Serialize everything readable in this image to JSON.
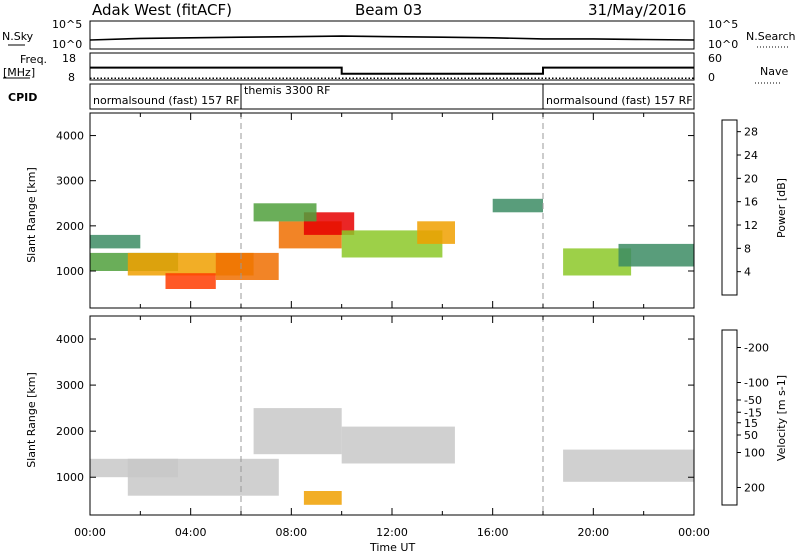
{
  "header": {
    "station": "Adak West (fitACF)",
    "beam": "Beam 03",
    "date": "31/May/2016"
  },
  "side_labels": {
    "nsky": "N.Sky",
    "nsearch": "N.Search",
    "freq_line1": "Freq.",
    "freq_line2": "[MHz]",
    "nave": "Nave",
    "cpid": "CPID"
  },
  "noise_axis": {
    "left_top": "10^5",
    "left_bottom": "10^0",
    "right_top": "10^5",
    "right_bottom": "10^0"
  },
  "freq_axis": {
    "left_top": "18",
    "left_bottom": "8",
    "right_top": "60",
    "right_bottom": "0"
  },
  "cpid": [
    {
      "label": "normalsound (fast) 157 RF",
      "start_hour": 0,
      "end_hour": 6
    },
    {
      "label": "themis 3300 RF",
      "start_hour": 6,
      "end_hour": 18
    },
    {
      "label": "normalsound (fast) 157 RF",
      "start_hour": 18,
      "end_hour": 24
    }
  ],
  "colors": {
    "power_scale": [
      "#0a14ff",
      "#1e50c8",
      "#2e6e8c",
      "#3c8c64",
      "#50a03c",
      "#8cc828",
      "#f0dc00",
      "#f0a000",
      "#f06e00",
      "#ff3c00",
      "#e60000"
    ],
    "velocity_scale": [
      "#0a14ff",
      "#1e50c8",
      "#3c8c64",
      "#46b43c",
      "#8cdc46",
      "#c8c8c8",
      "#f0c832",
      "#f0a000",
      "#f06e00",
      "#ff3c00",
      "#e60000"
    ]
  },
  "chart_data": [
    {
      "type": "line",
      "title": "",
      "ylabel_left": "N.Sky",
      "ylabel_right": "N.Search",
      "x": [
        0,
        2,
        4,
        6,
        8,
        10,
        12,
        14,
        16,
        18,
        20,
        22,
        24
      ],
      "y": [
        1.6,
        1.9,
        2.0,
        2.1,
        2.2,
        2.3,
        2.2,
        2.1,
        2.0,
        1.8,
        1.8,
        1.7,
        1.6
      ],
      "ylim_log10": [
        0,
        5
      ]
    },
    {
      "type": "line",
      "series": [
        {
          "name": "Freq.",
          "x": [
            0,
            10,
            10,
            18,
            18,
            24
          ],
          "y": [
            12.6,
            12.6,
            10.3,
            10.3,
            12.6,
            12.6
          ]
        },
        {
          "name": "Nave",
          "x": [
            0,
            10,
            10,
            18,
            18,
            24
          ],
          "y": [
            4,
            4,
            4,
            4,
            4,
            4
          ]
        }
      ],
      "ylim_left": [
        8,
        18
      ],
      "ylim_right": [
        0,
        60
      ]
    },
    {
      "type": "heatmap",
      "ylabel": "Slant Range [km]",
      "xlabel": "Time UT",
      "xlim": [
        0,
        24
      ],
      "ylim": [
        180,
        4500
      ],
      "x_ticks": [
        "00:00",
        "04:00",
        "08:00",
        "12:00",
        "16:00",
        "20:00",
        "00:00"
      ],
      "y_ticks": [
        1000,
        2000,
        3000,
        4000
      ],
      "colorbar_label": "Power [dB]",
      "colorbar_ticks": [
        4,
        8,
        12,
        16,
        20,
        24,
        28
      ],
      "colorbar_range": [
        0,
        30
      ],
      "regions": [
        {
          "t0": 0,
          "t1": 3.5,
          "r0": 1000,
          "r1": 1400,
          "value": 12
        },
        {
          "t0": 0,
          "t1": 2.0,
          "r0": 1500,
          "r1": 1800,
          "value": 10
        },
        {
          "t0": 1.5,
          "t1": 6.5,
          "r0": 900,
          "r1": 1400,
          "value": 20
        },
        {
          "t0": 3.0,
          "t1": 5.0,
          "r0": 600,
          "r1": 950,
          "value": 25
        },
        {
          "t0": 5.0,
          "t1": 7.5,
          "r0": 800,
          "r1": 1400,
          "value": 22
        },
        {
          "t0": 7.5,
          "t1": 10.0,
          "r0": 1500,
          "r1": 2100,
          "value": 24
        },
        {
          "t0": 8.5,
          "t1": 10.5,
          "r0": 1800,
          "r1": 2300,
          "value": 28
        },
        {
          "t0": 6.5,
          "t1": 9.0,
          "r0": 2100,
          "r1": 2500,
          "value": 12
        },
        {
          "t0": 10.0,
          "t1": 14.0,
          "r0": 1300,
          "r1": 1900,
          "value": 14
        },
        {
          "t0": 13.0,
          "t1": 14.5,
          "r0": 1600,
          "r1": 2100,
          "value": 20
        },
        {
          "t0": 16.0,
          "t1": 18.0,
          "r0": 2300,
          "r1": 2600,
          "value": 10
        },
        {
          "t0": 18.8,
          "t1": 21.5,
          "r0": 900,
          "r1": 1500,
          "value": 14
        },
        {
          "t0": 21.0,
          "t1": 24.0,
          "r0": 1100,
          "r1": 1600,
          "value": 10
        }
      ]
    },
    {
      "type": "heatmap",
      "ylabel": "Slant Range [km]",
      "xlabel": "Time UT",
      "xlim": [
        0,
        24
      ],
      "ylim": [
        180,
        4500
      ],
      "x_ticks": [
        "00:00",
        "04:00",
        "08:00",
        "12:00",
        "16:00",
        "20:00",
        "00:00"
      ],
      "y_ticks": [
        1000,
        2000,
        3000,
        4000
      ],
      "colorbar_label": "Velocity [m s-1]",
      "colorbar_ticks": [
        -200,
        -100,
        -50,
        -15,
        15,
        50,
        100,
        200
      ],
      "colorbar_range": [
        -250,
        250
      ],
      "regions": [
        {
          "t0": 0,
          "t1": 3.5,
          "r0": 1000,
          "r1": 1400,
          "value": 0
        },
        {
          "t0": 1.5,
          "t1": 7.5,
          "r0": 600,
          "r1": 1400,
          "value": 0
        },
        {
          "t0": 6.5,
          "t1": 10.0,
          "r0": 1500,
          "r1": 2500,
          "value": 0
        },
        {
          "t0": 10.0,
          "t1": 14.5,
          "r0": 1300,
          "r1": 2100,
          "value": 0
        },
        {
          "t0": 8.5,
          "t1": 10.0,
          "r0": 400,
          "r1": 700,
          "value": -70
        },
        {
          "t0": 18.8,
          "t1": 24.0,
          "r0": 900,
          "r1": 1600,
          "value": 0
        }
      ]
    }
  ]
}
